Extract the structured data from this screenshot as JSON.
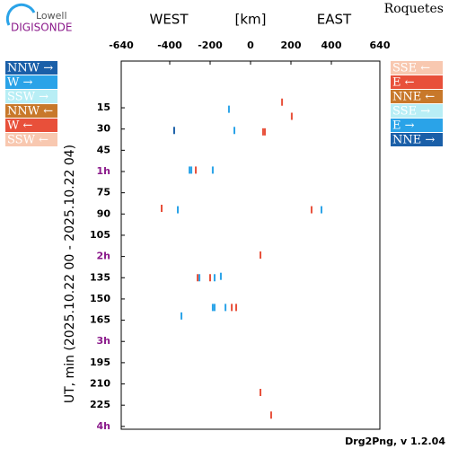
{
  "chart_data": {
    "type": "drift",
    "logo": {
      "top": "Lowell",
      "bottom": "DIGISONDE"
    },
    "station": "Roquetes",
    "west_label": "WEST",
    "unit_label": "[km]",
    "east_label": "EAST",
    "y_label": "UT, min (2025.10.22 00 - 2025.10.22 04)",
    "footer": "Drg2Png, v 1.2.04",
    "xlim": [
      -640,
      640
    ],
    "xticks": [
      -640,
      -400,
      -200,
      0,
      200,
      400,
      640
    ],
    "ylim": [
      -18,
      242
    ],
    "yticks": [
      15,
      30,
      45,
      {
        "value": 60,
        "label": "1h"
      },
      75,
      90,
      105,
      {
        "value": 120,
        "label": "2h"
      },
      135,
      150,
      165,
      {
        "value": 180,
        "label": "3h"
      },
      195,
      210,
      225,
      {
        "value": 240,
        "label": "4h"
      }
    ],
    "yticks_display": [
      "15",
      "30",
      "45",
      "1h",
      "15",
      "30",
      "45",
      "2h",
      "15",
      "30",
      "45",
      "3h",
      "15",
      "30",
      "45",
      "4h"
    ],
    "hour_label_color": "#8b1a8b",
    "series": [
      {
        "name": "NNW →",
        "side": "left",
        "color": "#1a5fa8",
        "x": [
          -378
        ],
        "values": [
          31
        ]
      },
      {
        "name": "W →",
        "side": "left",
        "color": "#2aa3e8",
        "x": [
          -107,
          -80,
          -302,
          -293,
          -187,
          -360,
          351,
          -253,
          -178,
          -147,
          -187,
          -178,
          -124,
          -342
        ],
        "values": [
          16,
          31,
          59,
          59,
          59,
          87,
          87,
          135,
          135,
          134,
          156,
          156,
          156,
          162
        ]
      },
      {
        "name": "SSW →",
        "side": "left",
        "color": "#b8eef5",
        "x": [],
        "values": []
      },
      {
        "name": "NNW ←",
        "side": "left",
        "color": "#c8782a",
        "x": [],
        "values": []
      },
      {
        "name": "W ←",
        "side": "left",
        "color": "#e8503a",
        "x": [],
        "values": []
      },
      {
        "name": "SSW ←",
        "side": "left",
        "color": "#f8c8b0",
        "x": [],
        "values": []
      },
      {
        "name": "SSE ←",
        "side": "right",
        "color": "#f8c8b0",
        "x": [],
        "values": []
      },
      {
        "name": "E ←",
        "side": "right",
        "color": "#e8503a",
        "x": [
          156,
          204,
          62,
          71,
          -271,
          -440,
          302,
          49,
          -262,
          -200,
          -93,
          -71,
          49,
          102
        ],
        "values": [
          11,
          21,
          32,
          32,
          59,
          86,
          87,
          119,
          135,
          135,
          156,
          156,
          216,
          232
        ]
      },
      {
        "name": "NNE ←",
        "side": "right",
        "color": "#c8782a",
        "x": [],
        "values": []
      },
      {
        "name": "SSE →",
        "side": "right",
        "color": "#b8eef5",
        "x": [],
        "values": []
      },
      {
        "name": "E →",
        "side": "right",
        "color": "#2aa3e8",
        "x": [],
        "values": []
      },
      {
        "name": "NNE →",
        "side": "right",
        "color": "#1a5fa8",
        "x": [],
        "values": []
      }
    ]
  }
}
